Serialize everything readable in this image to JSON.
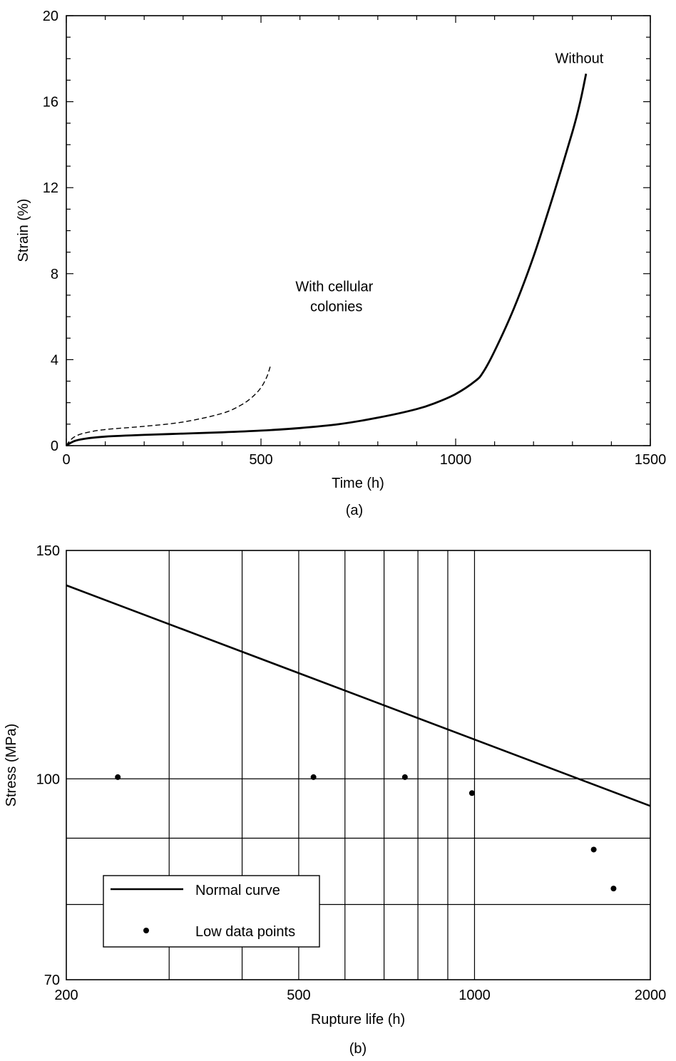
{
  "chart_data": [
    {
      "type": "line",
      "panel_label": "(a)",
      "xlabel": "Time (h)",
      "ylabel": "Strain (%)",
      "xlim": [
        0,
        1500
      ],
      "ylim": [
        0,
        20
      ],
      "x_ticks": [
        "0",
        "500",
        "1000",
        "1500"
      ],
      "y_ticks": [
        "0",
        "4",
        "8",
        "12",
        "16",
        "20"
      ],
      "grid": false,
      "series": [
        {
          "style": "solid",
          "x": [
            0,
            10,
            25,
            50,
            100,
            200,
            300,
            400,
            500,
            600,
            700,
            800,
            900,
            950,
            1000,
            1050,
            1070,
            1100,
            1150,
            1200,
            1250,
            1300,
            1320,
            1335
          ],
          "y": [
            0,
            0.12,
            0.24,
            0.33,
            0.42,
            0.5,
            0.56,
            0.62,
            0.7,
            0.82,
            1.0,
            1.3,
            1.7,
            2.0,
            2.4,
            3.0,
            3.4,
            4.4,
            6.4,
            8.8,
            11.6,
            14.6,
            16.0,
            17.3
          ]
        },
        {
          "style": "dashed",
          "x": [
            0,
            10,
            25,
            50,
            100,
            200,
            300,
            400,
            450,
            480,
            500,
            515,
            525
          ],
          "y": [
            0,
            0.25,
            0.45,
            0.6,
            0.75,
            0.9,
            1.1,
            1.5,
            1.9,
            2.3,
            2.7,
            3.2,
            3.75
          ]
        }
      ],
      "annotations": [
        {
          "text": "Without",
          "x": 1345,
          "y": 17.6
        },
        {
          "text": "With cellular colonies",
          "lines": [
            "With cellular",
            "colonies"
          ],
          "x": 525,
          "y": 4.8
        }
      ]
    },
    {
      "type": "line",
      "panel_label": "(b)",
      "xlabel": "Rupture life (h)",
      "ylabel": "Stress (MPa)",
      "xscale": "log",
      "yscale": "log",
      "xlim": [
        200,
        2000
      ],
      "ylim": [
        70,
        150
      ],
      "x_ticks": [
        "200",
        "500",
        "1000",
        "2000"
      ],
      "y_ticks": [
        "70",
        "100",
        "150"
      ],
      "grid": true,
      "x_grid": [
        300,
        400,
        500,
        600,
        700,
        800,
        900,
        1000
      ],
      "y_grid": [
        90,
        100
      ],
      "legend": {
        "position": "lower-left",
        "entries": [
          "Normal curve",
          "Low data points"
        ]
      },
      "series": [
        {
          "name": "Normal curve",
          "style": "line",
          "x": [
            200,
            2000
          ],
          "y": [
            141,
            95.3
          ]
        },
        {
          "name": "Low data points",
          "style": "points",
          "x": [
            245,
            530,
            760,
            990,
            1600,
            1730
          ],
          "y": [
            100.3,
            100.3,
            100.3,
            97.5,
            88.2,
            82.3
          ]
        }
      ]
    }
  ]
}
